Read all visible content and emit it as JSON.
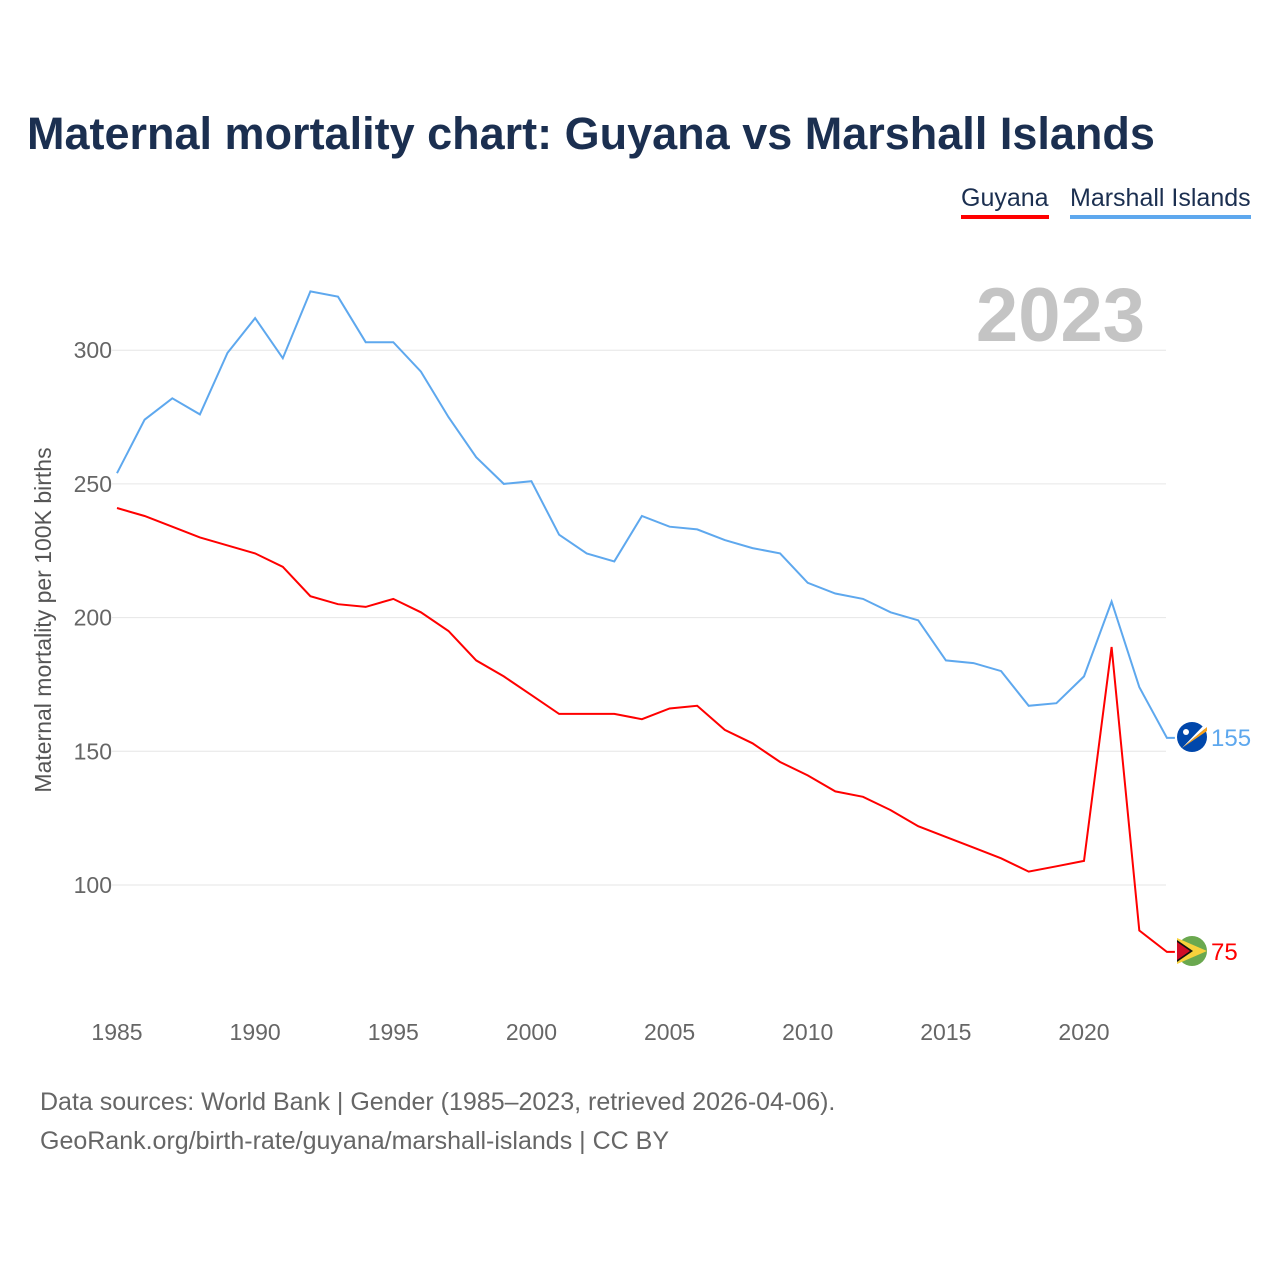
{
  "chart_data": {
    "type": "line",
    "title": "Maternal mortality chart: Guyana vs Marshall Islands",
    "ylabel": "Maternal mortality per 100K births",
    "xlabel": "",
    "year_label": "2023",
    "xlim": [
      1985,
      2023
    ],
    "ylim": [
      60,
      330
    ],
    "xticks": [
      1985,
      1990,
      1995,
      2000,
      2005,
      2010,
      2015,
      2020
    ],
    "yticks": [
      100,
      150,
      200,
      250,
      300
    ],
    "grid": true,
    "legend_position": "top-right",
    "x": [
      1985,
      1986,
      1987,
      1988,
      1989,
      1990,
      1991,
      1992,
      1993,
      1994,
      1995,
      1996,
      1997,
      1998,
      1999,
      2000,
      2001,
      2002,
      2003,
      2004,
      2005,
      2006,
      2007,
      2008,
      2009,
      2010,
      2011,
      2012,
      2013,
      2014,
      2015,
      2016,
      2017,
      2018,
      2019,
      2020,
      2021,
      2022,
      2023
    ],
    "series": [
      {
        "name": "Guyana",
        "color": "#ff0000",
        "end_label": "75",
        "values": [
          241,
          238,
          234,
          230,
          227,
          224,
          219,
          208,
          205,
          204,
          207,
          202,
          195,
          184,
          178,
          171,
          164,
          164,
          164,
          162,
          166,
          167,
          158,
          153,
          146,
          141,
          135,
          133,
          128,
          122,
          118,
          114,
          110,
          105,
          107,
          109,
          189,
          83,
          75
        ]
      },
      {
        "name": "Marshall Islands",
        "color": "#5ea8ee",
        "end_label": "155",
        "values": [
          254,
          274,
          282,
          276,
          299,
          312,
          297,
          322,
          320,
          303,
          303,
          292,
          275,
          260,
          250,
          251,
          231,
          224,
          221,
          238,
          234,
          233,
          229,
          226,
          224,
          213,
          209,
          207,
          202,
          199,
          184,
          183,
          180,
          167,
          168,
          178,
          206,
          174,
          155
        ]
      }
    ]
  },
  "footer": {
    "line1": "Data sources: World Bank | Gender (1985–2023, retrieved 2026-04-06).",
    "line2": "GeoRank.org/birth-rate/guyana/marshall-islands | CC BY"
  }
}
